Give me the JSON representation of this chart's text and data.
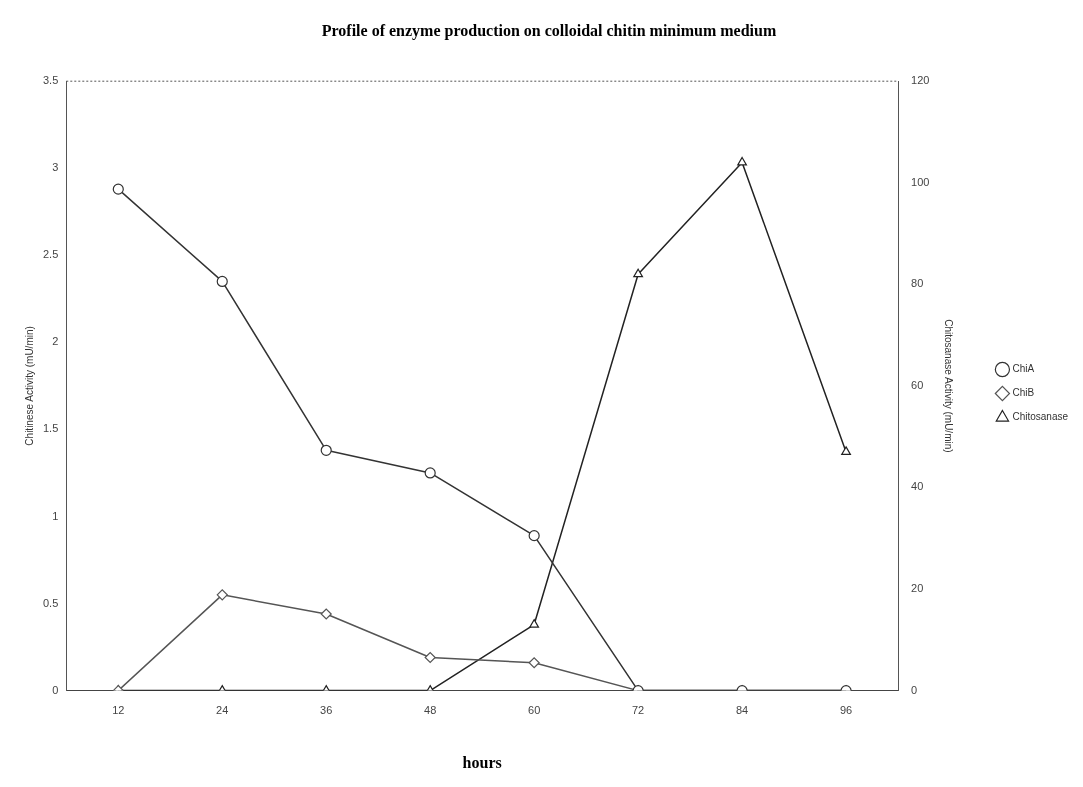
{
  "chart_data": {
    "type": "line",
    "title": "Profile of enzyme production on colloidal chitin minimum medium",
    "xlabel": "hours",
    "ylabel": "Chitinese Activity (mU/min)",
    "y2label": "Chitosanase Activity (mU/min)",
    "categories": [
      "12",
      "24",
      "36",
      "48",
      "60",
      "72",
      "84",
      "96"
    ],
    "ylim": [
      0,
      3.5
    ],
    "yticks": [
      0,
      0.5,
      1,
      1.5,
      2,
      2.5,
      3,
      3.5
    ],
    "y2lim": [
      0,
      120
    ],
    "y2ticks": [
      0,
      20,
      40,
      60,
      80,
      100,
      120
    ],
    "grid": false,
    "legend": "right",
    "line_style": "solid",
    "series": [
      {
        "name": "ChiA",
        "color": "#333333",
        "marker": "circle",
        "values": [
          2.88,
          2.35,
          1.38,
          1.25,
          0.89,
          0,
          0,
          0
        ]
      },
      {
        "name": "ChiB",
        "color": "#555555",
        "marker": "diamond",
        "values": [
          0,
          0.55,
          0.44,
          0.19,
          0.16,
          0,
          0,
          0
        ]
      },
      {
        "name": "Chitosanase",
        "color": "#222222",
        "marker": "triangle",
        "axis": "y2",
        "values": [
          0,
          0,
          0,
          0,
          13,
          82,
          104,
          47
        ]
      }
    ]
  }
}
